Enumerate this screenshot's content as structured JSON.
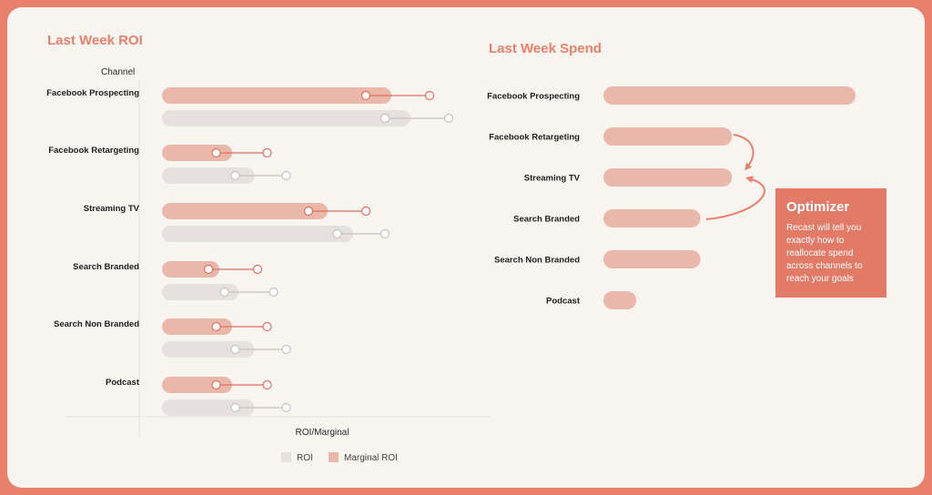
{
  "colors": {
    "accent": "#e8806c",
    "title": "#e8806c",
    "marginal": "#e9b8aa",
    "roi": "#e6e0de",
    "marginal_line": "#e06f5c",
    "roi_line": "#c8c2c0"
  },
  "chart_data": [
    {
      "type": "bar",
      "title": "Last Week ROI",
      "ylabel": "Channel",
      "xlabel": "ROI/Marginal",
      "categories": [
        "Facebook Prospecting",
        "Facebook Retargeting",
        "Streaming TV",
        "Search Branded",
        "Search Non Branded",
        "Podcast"
      ],
      "series": [
        {
          "name": "Marginal ROI",
          "values": [
            3.6,
            1.1,
            2.6,
            0.9,
            1.1,
            1.1
          ],
          "point": [
            3.2,
            0.85,
            2.3,
            0.73,
            0.85,
            0.85
          ],
          "whisker": [
            4.2,
            1.65,
            3.2,
            1.5,
            1.65,
            1.65
          ]
        },
        {
          "name": "ROI",
          "values": [
            3.9,
            1.45,
            3.0,
            1.2,
            1.45,
            1.45
          ],
          "point": [
            3.5,
            1.15,
            2.75,
            0.98,
            1.15,
            1.15
          ],
          "whisker": [
            4.5,
            1.95,
            3.5,
            1.75,
            1.95,
            1.95
          ]
        }
      ],
      "legend": [
        "ROI",
        "Marginal ROI"
      ],
      "xlim": [
        0,
        5
      ]
    },
    {
      "type": "bar",
      "title": "Last Week Spend",
      "categories": [
        "Facebook Prospecting",
        "Facebook Retargeting",
        "Streaming TV",
        "Search Branded",
        "Search Non Branded",
        "Podcast"
      ],
      "values": [
        100,
        51,
        51,
        38.5,
        38.5,
        13
      ],
      "xlim": [
        0,
        100
      ]
    }
  ],
  "callout": {
    "title": "Optimizer",
    "body": "Recast will tell you exactly how to reallocate spend across channels to reach your goals"
  }
}
